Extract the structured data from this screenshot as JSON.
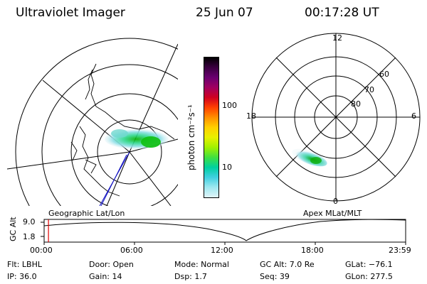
{
  "header": {
    "instrument": "Ultraviolet Imager",
    "date": "25 Jun 07",
    "time": "00:17:28 UT"
  },
  "left_map": {
    "label": "Geographic Lat/Lon"
  },
  "colorbar": {
    "unit_label": "photon cm⁻²s⁻¹",
    "ticks": [
      "100",
      "10"
    ],
    "colors": [
      "#000000",
      "#3a0040",
      "#6a0070",
      "#a00060",
      "#d00020",
      "#ff4000",
      "#ff9000",
      "#ffd000",
      "#e8f000",
      "#a0f000",
      "#40e040",
      "#00d0a0",
      "#40d0e0",
      "#a0e8f0",
      "#e0f4f8"
    ]
  },
  "right_map": {
    "label": "Apex MLat/MLT",
    "mlt_labels": {
      "top": "12",
      "left": "18",
      "right": "6",
      "bottom": "0"
    },
    "lat_labels": [
      "60",
      "70",
      "80"
    ]
  },
  "timeline": {
    "ylabel": "GC Alt",
    "yticks": [
      "9.0",
      "1.8"
    ],
    "xticks": [
      "00:00",
      "06:00",
      "12:00",
      "18:00",
      "23:59"
    ],
    "current_time_fraction": 0.012
  },
  "status": {
    "flt": "Flt: LBHL",
    "ip": "IP: 36.0",
    "door": "Door: Open",
    "gain": "Gain: 14",
    "mode": "Mode: Normal",
    "dsp": "Dsp:     1.7",
    "gc_alt": "GC Alt: 7.0 Re",
    "seq": "Seq: 39",
    "glat": "GLat: −76.1",
    "glon": "GLon: 277.5"
  }
}
